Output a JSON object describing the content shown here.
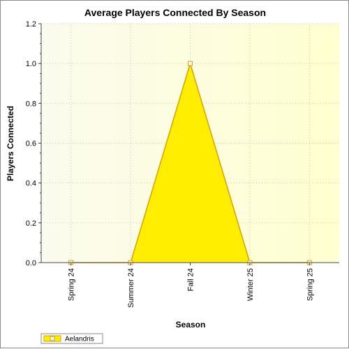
{
  "chart_data": {
    "type": "area",
    "title": "Average Players Connected By Season",
    "xlabel": "Season",
    "ylabel": "Players Connected",
    "categories": [
      "Spring 24",
      "Summer 24",
      "Fall 24",
      "Winter 25",
      "Spring 25"
    ],
    "series": [
      {
        "name": "Aelandris",
        "values": [
          0,
          0,
          1,
          0,
          0
        ],
        "color": "#ffee00",
        "stroke": "#d8a000"
      }
    ],
    "ylim": [
      0,
      1.2
    ],
    "yticks": [
      0.0,
      0.2,
      0.4,
      0.6,
      0.8,
      1.0,
      1.2
    ],
    "ytick_labels": [
      "0.0",
      "0.2",
      "0.4",
      "0.6",
      "0.8",
      "1.0",
      "1.2"
    ],
    "grid": true,
    "legend_position": "bottom-left",
    "colors": {
      "plot_bg_start": "#fbfbe8",
      "plot_bg_end": "#ffffcc",
      "grid": "#c8c8a8"
    }
  }
}
